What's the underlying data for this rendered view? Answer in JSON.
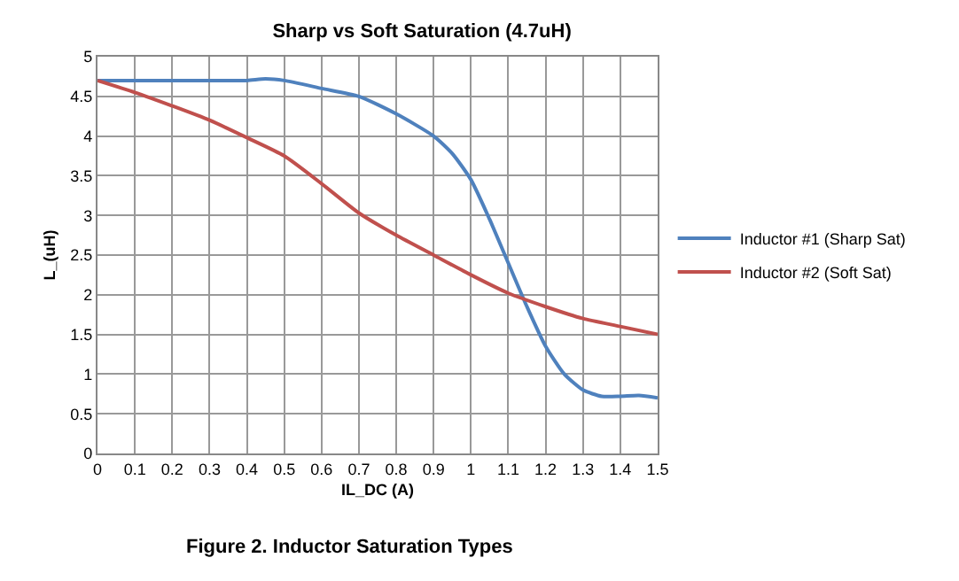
{
  "chart_data": {
    "type": "line",
    "title": "Sharp vs Soft Saturation (4.7uH)",
    "xlabel": "IL_DC (A)",
    "ylabel": "L_(uH)",
    "annotations": [
      "Figure 2. Inductor Saturation Types"
    ],
    "series": [
      {
        "name": "Inductor #1 (Sharp Sat)",
        "color": "#4f81bd",
        "x": [
          0,
          0.1,
          0.2,
          0.3,
          0.4,
          0.45,
          0.5,
          0.6,
          0.7,
          0.8,
          0.9,
          0.95,
          1.0,
          1.05,
          1.1,
          1.15,
          1.2,
          1.25,
          1.3,
          1.35,
          1.4,
          1.45,
          1.5
        ],
        "values": [
          4.7,
          4.7,
          4.7,
          4.7,
          4.7,
          4.72,
          4.7,
          4.6,
          4.5,
          4.28,
          4.0,
          3.78,
          3.45,
          2.95,
          2.4,
          1.85,
          1.35,
          1.0,
          0.8,
          0.72,
          0.72,
          0.73,
          0.7
        ]
      },
      {
        "name": "Inductor #2 (Soft Sat)",
        "color": "#c0504d",
        "x": [
          0,
          0.1,
          0.2,
          0.3,
          0.4,
          0.5,
          0.6,
          0.7,
          0.8,
          0.9,
          1.0,
          1.1,
          1.2,
          1.3,
          1.4,
          1.5
        ],
        "values": [
          4.7,
          4.55,
          4.38,
          4.2,
          3.98,
          3.75,
          3.4,
          3.03,
          2.75,
          2.5,
          2.25,
          2.02,
          1.85,
          1.7,
          1.6,
          1.5
        ]
      }
    ],
    "xlim": [
      0,
      1.5
    ],
    "xticks": [
      0,
      0.1,
      0.2,
      0.3,
      0.4,
      0.5,
      0.6,
      0.7,
      0.8,
      0.9,
      1,
      1.1,
      1.2,
      1.3,
      1.4,
      1.5
    ],
    "ylim": [
      0,
      5
    ],
    "yticks": [
      0,
      0.5,
      1,
      1.5,
      2,
      2.5,
      3,
      3.5,
      4,
      4.5,
      5
    ],
    "grid": true,
    "legend": "right",
    "marker": "none",
    "line_style": "solid"
  }
}
